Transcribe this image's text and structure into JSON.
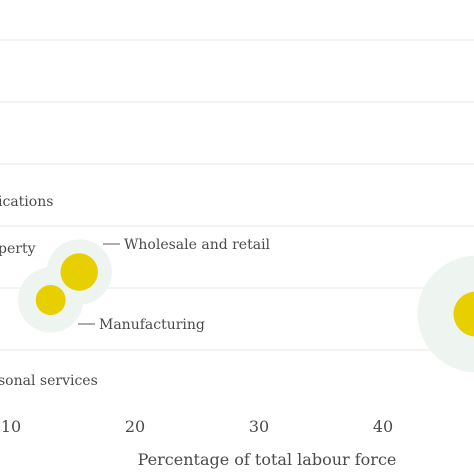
{
  "chart_data": {
    "type": "scatter",
    "xlabel": "Percentage of total labour force",
    "xticks": [
      "10",
      "20",
      "30",
      "40"
    ],
    "xlim": [
      9,
      48
    ],
    "row_labels": [
      "",
      "",
      "",
      "ications",
      "perty",
      "",
      "sonal services"
    ],
    "colors": {
      "inner": "#e8cf00",
      "halo": "#eef4f0",
      "grid": "#e7e7e4",
      "text": "#4a4a4a"
    },
    "points": [
      {
        "label": "Wholesale and retail",
        "x": 15.5,
        "row": 4.6,
        "inner": 1.0,
        "halo": 1.9
      },
      {
        "label": "Manufacturing",
        "x": 13.2,
        "row": 5.4,
        "inner": 0.8,
        "halo": 1.9
      },
      {
        "label": "",
        "x": 47.5,
        "row": 5.6,
        "inner": 1.2,
        "halo": 3.4
      }
    ]
  }
}
